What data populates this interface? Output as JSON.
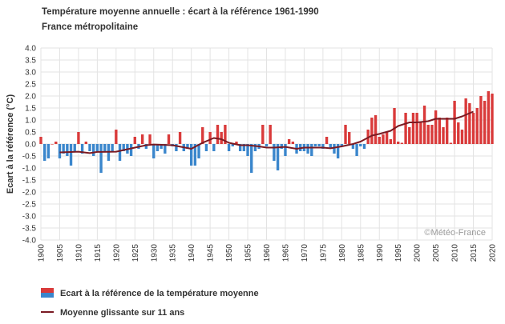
{
  "chart_data": {
    "type": "bar",
    "title": "Température moyenne annuelle : écart à la référence 1961-1990",
    "subtitle": "France métropolitaine",
    "ylabel": "Ecart à la référence (°C)",
    "xlabel": "",
    "ylim": [
      -4.0,
      4.0
    ],
    "ytick_step": 0.5,
    "yticks": [
      "4.0",
      "3.5",
      "3.0",
      "2.5",
      "2.0",
      "1.5",
      "1.0",
      "0.5",
      "0.0",
      "-0.5",
      "-1.0",
      "-1.5",
      "-2.0",
      "-2.5",
      "-3.0",
      "-3.5",
      "-4.0"
    ],
    "xlim": [
      1900,
      2020
    ],
    "xticks": [
      "1900",
      "1905",
      "1910",
      "1915",
      "1920",
      "1925",
      "1930",
      "1935",
      "1940",
      "1945",
      "1950",
      "1955",
      "1960",
      "1965",
      "1970",
      "1975",
      "1980",
      "1985",
      "1990",
      "1995",
      "2000",
      "2005",
      "2010",
      "2015",
      "2020"
    ],
    "grid": true,
    "legend_position": "bottom-left",
    "credit": "©Météo-France",
    "colors": {
      "positive": "#d93a3a",
      "negative": "#3a86cc",
      "moving_average": "#7a1a22",
      "grid": "#e3e3e3"
    },
    "series": [
      {
        "name": "Ecart à la référence de la température moyenne",
        "type": "bar",
        "x": [
          1900,
          1901,
          1902,
          1903,
          1904,
          1905,
          1906,
          1907,
          1908,
          1909,
          1910,
          1911,
          1912,
          1913,
          1914,
          1915,
          1916,
          1917,
          1918,
          1919,
          1920,
          1921,
          1922,
          1923,
          1924,
          1925,
          1926,
          1927,
          1928,
          1929,
          1930,
          1931,
          1932,
          1933,
          1934,
          1935,
          1936,
          1937,
          1938,
          1939,
          1940,
          1941,
          1942,
          1943,
          1944,
          1945,
          1946,
          1947,
          1948,
          1949,
          1950,
          1951,
          1952,
          1953,
          1954,
          1955,
          1956,
          1957,
          1958,
          1959,
          1960,
          1961,
          1962,
          1963,
          1964,
          1965,
          1966,
          1967,
          1968,
          1969,
          1970,
          1971,
          1972,
          1973,
          1974,
          1975,
          1976,
          1977,
          1978,
          1979,
          1980,
          1981,
          1982,
          1983,
          1984,
          1985,
          1986,
          1987,
          1988,
          1989,
          1990,
          1991,
          1992,
          1993,
          1994,
          1995,
          1996,
          1997,
          1998,
          1999,
          2000,
          2001,
          2002,
          2003,
          2004,
          2005,
          2006,
          2007,
          2008,
          2009,
          2010,
          2011,
          2012,
          2013,
          2014,
          2015,
          2016,
          2017,
          2018,
          2019,
          2020
        ],
        "values": [
          0.3,
          -0.7,
          -0.6,
          0.0,
          0.1,
          -0.6,
          -0.4,
          -0.5,
          -0.9,
          -0.3,
          0.5,
          -0.4,
          0.1,
          -0.3,
          -0.5,
          -0.3,
          -1.2,
          -0.3,
          -0.7,
          -0.3,
          0.6,
          -0.7,
          -0.3,
          -0.4,
          -0.5,
          0.3,
          -0.2,
          0.4,
          -0.2,
          0.4,
          -0.6,
          -0.3,
          -0.2,
          -0.4,
          0.4,
          -0.1,
          -0.3,
          0.5,
          -0.3,
          -0.2,
          -0.9,
          -0.9,
          -0.6,
          0.7,
          -0.3,
          0.5,
          -0.3,
          0.8,
          0.5,
          0.8,
          -0.3,
          -0.1,
          0.1,
          -0.3,
          -0.3,
          -0.5,
          -1.2,
          -0.3,
          -0.2,
          0.8,
          -0.1,
          0.8,
          -0.7,
          -1.1,
          -0.2,
          -0.5,
          0.2,
          0.1,
          -0.4,
          -0.3,
          -0.3,
          -0.4,
          -0.5,
          -0.1,
          -0.1,
          -0.2,
          0.3,
          -0.2,
          -0.4,
          -0.6,
          -0.1,
          0.8,
          0.5,
          -0.2,
          -0.5,
          -0.1,
          -0.2,
          0.6,
          1.1,
          1.2,
          0.3,
          0.4,
          0.5,
          0.2,
          1.5,
          0.1,
          0.05,
          1.3,
          0.7,
          1.3,
          1.3,
          0.9,
          1.6,
          0.8,
          0.8,
          1.4,
          1.1,
          0.7,
          1.1,
          0.05,
          1.8,
          0.9,
          0.6,
          1.9,
          1.7,
          1.3,
          1.5,
          2.0,
          1.8,
          2.2,
          2.1
        ]
      },
      {
        "name": "Moyenne glissante sur 11 ans",
        "type": "line",
        "x": [
          1905,
          1910,
          1913,
          1915,
          1920,
          1925,
          1928,
          1930,
          1935,
          1940,
          1943,
          1946,
          1948,
          1950,
          1953,
          1955,
          1958,
          1960,
          1962,
          1965,
          1968,
          1970,
          1973,
          1975,
          1977,
          1980,
          1983,
          1985,
          1988,
          1990,
          1993,
          1995,
          1998,
          2000,
          2003,
          2005,
          2008,
          2010,
          2012,
          2015
        ],
        "values": [
          -0.35,
          -0.32,
          -0.38,
          -0.33,
          -0.32,
          -0.15,
          -0.05,
          -0.02,
          -0.05,
          -0.2,
          0.05,
          0.25,
          0.2,
          0.05,
          -0.05,
          -0.05,
          -0.1,
          -0.15,
          -0.15,
          -0.12,
          -0.2,
          -0.15,
          -0.15,
          -0.15,
          -0.18,
          -0.1,
          0.0,
          0.1,
          0.35,
          0.42,
          0.55,
          0.75,
          0.9,
          0.9,
          0.95,
          1.05,
          1.05,
          1.05,
          1.15,
          1.35
        ]
      }
    ]
  }
}
